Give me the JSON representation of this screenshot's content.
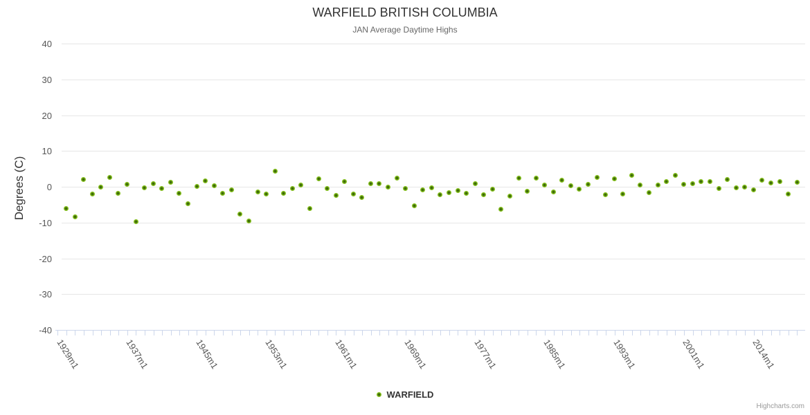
{
  "chart": {
    "title": "WARFIELD BRITISH COLUMBIA",
    "subtitle": "JAN Average Daytime Highs",
    "y_axis_title": "Degrees (C)",
    "legend": {
      "series_label": "WARFIELD"
    },
    "credits": "Highcharts.com"
  },
  "chart_data": {
    "type": "scatter",
    "title": "WARFIELD BRITISH COLUMBIA",
    "subtitle": "JAN Average Daytime Highs",
    "ylabel": "Degrees (C)",
    "ylim": [
      -40,
      40
    ],
    "y_tick_step": 10,
    "y_tick_labels": [
      "40",
      "30",
      "20",
      "10",
      "0",
      "-10",
      "-20",
      "-30",
      "-40"
    ],
    "y_tick_values": [
      40,
      30,
      20,
      10,
      0,
      -10,
      -20,
      -30,
      -40
    ],
    "x_tick_labels": [
      "1929m1",
      "1937m1",
      "1945m1",
      "1953m1",
      "1961m1",
      "1969m1",
      "1977m1",
      "1985m1",
      "1993m1",
      "2001m1",
      "2014m1"
    ],
    "x_tick_label_interval": 8,
    "grid": "horizontal",
    "legend_position": "bottom-center",
    "series": [
      {
        "name": "WARFIELD",
        "values": [
          -6,
          -8.4,
          2,
          -2,
          0,
          2.7,
          -1.9,
          0.6,
          -9.7,
          -0.2,
          0.8,
          -0.5,
          1.2,
          -1.8,
          -4.7,
          0.1,
          1.6,
          0.3,
          -1.8,
          -0.8,
          -7.7,
          -9.5,
          -1.5,
          -2.1,
          4.4,
          -1.8,
          -0.4,
          0.5,
          -6.1,
          2.2,
          -0.4,
          -2.5,
          1.4,
          -2.1,
          -3,
          0.9,
          0.8,
          -0.1,
          2.4,
          -0.4,
          -5.4,
          -0.8,
          -0.3,
          -2.3,
          -1.7,
          -1,
          -1.9,
          0.9,
          -2.2,
          -0.7,
          -6.2,
          -2.7,
          2.4,
          -1.2,
          2.5,
          0.5,
          -1.5,
          1.9,
          0.2,
          -0.6,
          0.6,
          2.6,
          -2.3,
          2.3,
          -2,
          3.2,
          0.5,
          -1.6,
          0.5,
          1.4,
          3.2,
          0.6,
          0.9,
          1.4,
          1.4,
          -0.5,
          2.1,
          -0.2,
          0,
          -0.9,
          1.9,
          1.1,
          1.5,
          -2,
          1.3
        ]
      }
    ],
    "num_points": 85,
    "colors": {
      "marker_outer": "#84bf1d",
      "marker_inner": "#3f6c0a",
      "grid": "#e6e6e6",
      "axis_line": "#ccd6eb",
      "title": "#333333",
      "subtitle": "#666666",
      "axis_label": "#555555",
      "credits": "#999999"
    }
  }
}
